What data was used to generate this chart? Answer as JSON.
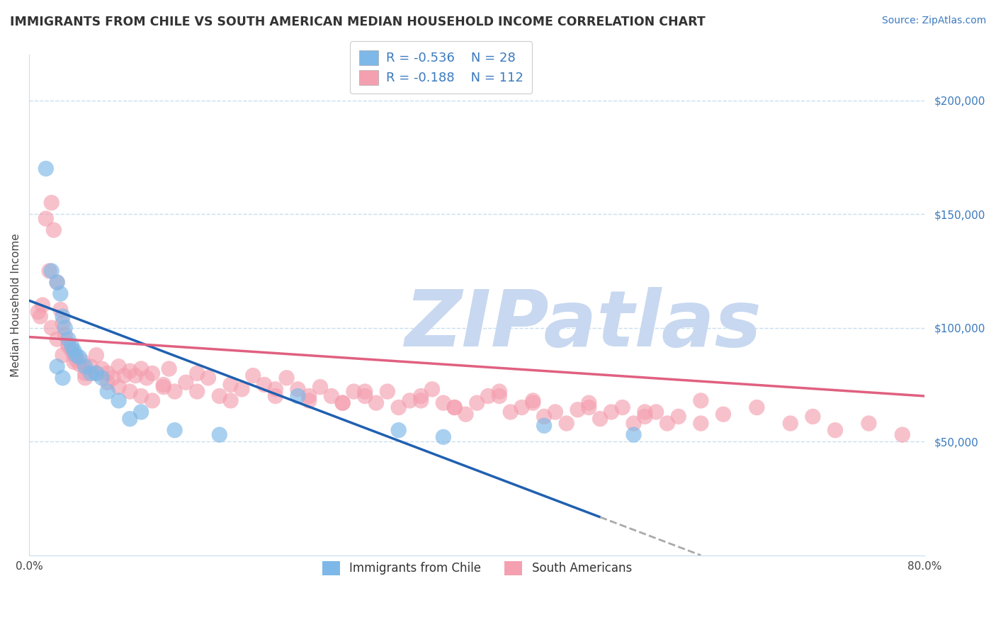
{
  "title": "IMMIGRANTS FROM CHILE VS SOUTH AMERICAN MEDIAN HOUSEHOLD INCOME CORRELATION CHART",
  "source": "Source: ZipAtlas.com",
  "ylabel": "Median Household Income",
  "xlim": [
    0.0,
    80.0
  ],
  "ylim": [
    0,
    220000
  ],
  "right_yticks": [
    50000,
    100000,
    150000,
    200000
  ],
  "right_yticklabels": [
    "$50,000",
    "$100,000",
    "$150,000",
    "$200,000"
  ],
  "chile_R": -0.536,
  "chile_N": 28,
  "sa_R": -0.188,
  "sa_N": 112,
  "chile_color": "#7db8e8",
  "sa_color": "#f4a0b0",
  "chile_line_color": "#2060b0",
  "sa_line_color": "#e06080",
  "dashed_line_color": "#aaaaaa",
  "background_color": "#ffffff",
  "grid_color": "#c8dff0",
  "chile_line_x0": 0.0,
  "chile_line_y0": 112000,
  "chile_line_x1": 60.0,
  "chile_line_y1": 0,
  "chile_solid_end": 51.0,
  "chile_dashed_start": 51.0,
  "chile_dashed_end": 60.0,
  "sa_line_x0": 0.0,
  "sa_line_y0": 96000,
  "sa_line_x1": 80.0,
  "sa_line_y1": 70000,
  "chile_scatter_x": [
    1.5,
    2.0,
    2.5,
    2.8,
    3.0,
    3.2,
    3.5,
    3.8,
    4.0,
    4.2,
    4.5,
    5.0,
    5.5,
    6.0,
    6.5,
    7.0,
    8.0,
    9.0,
    10.0,
    13.0,
    17.0,
    24.0,
    33.0,
    37.0,
    46.0,
    54.0,
    3.0,
    2.5
  ],
  "chile_scatter_y": [
    170000,
    125000,
    120000,
    115000,
    105000,
    100000,
    95000,
    92000,
    90000,
    88000,
    87000,
    83000,
    80000,
    80000,
    78000,
    72000,
    68000,
    60000,
    63000,
    55000,
    53000,
    70000,
    55000,
    52000,
    57000,
    53000,
    78000,
    83000
  ],
  "sa_scatter_x": [
    0.8,
    1.0,
    1.2,
    1.5,
    1.8,
    2.0,
    2.2,
    2.5,
    2.8,
    3.0,
    3.2,
    3.5,
    3.8,
    4.0,
    4.2,
    4.5,
    4.8,
    5.0,
    5.5,
    6.0,
    6.5,
    7.0,
    7.5,
    8.0,
    8.5,
    9.0,
    9.5,
    10.0,
    10.5,
    11.0,
    12.0,
    12.5,
    13.0,
    14.0,
    15.0,
    16.0,
    17.0,
    18.0,
    19.0,
    20.0,
    21.0,
    22.0,
    23.0,
    24.0,
    25.0,
    26.0,
    27.0,
    28.0,
    29.0,
    30.0,
    31.0,
    32.0,
    33.0,
    34.0,
    35.0,
    36.0,
    37.0,
    38.0,
    39.0,
    40.0,
    41.0,
    42.0,
    43.0,
    44.0,
    45.0,
    46.0,
    47.0,
    48.0,
    49.0,
    50.0,
    51.0,
    52.0,
    53.0,
    54.0,
    55.0,
    56.0,
    57.0,
    58.0,
    60.0,
    62.0,
    65.0,
    68.0,
    70.0,
    72.0,
    75.0,
    78.0,
    2.0,
    2.5,
    3.0,
    3.5,
    4.0,
    5.0,
    6.0,
    7.0,
    8.0,
    9.0,
    10.0,
    11.0,
    12.0,
    15.0,
    18.0,
    22.0,
    25.0,
    28.0,
    30.0,
    35.0,
    38.0,
    42.0,
    45.0,
    50.0,
    55.0,
    60.0
  ],
  "sa_scatter_y": [
    107000,
    105000,
    110000,
    148000,
    125000,
    155000,
    143000,
    120000,
    108000,
    102000,
    97000,
    93000,
    90000,
    88000,
    86000,
    84000,
    85000,
    80000,
    83000,
    88000,
    82000,
    80000,
    78000,
    83000,
    79000,
    81000,
    79000,
    82000,
    78000,
    80000,
    75000,
    82000,
    72000,
    76000,
    80000,
    78000,
    70000,
    75000,
    73000,
    79000,
    75000,
    70000,
    78000,
    73000,
    68000,
    74000,
    70000,
    67000,
    72000,
    70000,
    67000,
    72000,
    65000,
    68000,
    70000,
    73000,
    67000,
    65000,
    62000,
    67000,
    70000,
    72000,
    63000,
    65000,
    68000,
    61000,
    63000,
    58000,
    64000,
    67000,
    60000,
    63000,
    65000,
    58000,
    61000,
    63000,
    58000,
    61000,
    58000,
    62000,
    65000,
    58000,
    61000,
    55000,
    58000,
    53000,
    100000,
    95000,
    88000,
    92000,
    85000,
    78000,
    80000,
    76000,
    74000,
    72000,
    70000,
    68000,
    74000,
    72000,
    68000,
    73000,
    70000,
    67000,
    72000,
    68000,
    65000,
    70000,
    67000,
    65000,
    63000,
    68000
  ]
}
